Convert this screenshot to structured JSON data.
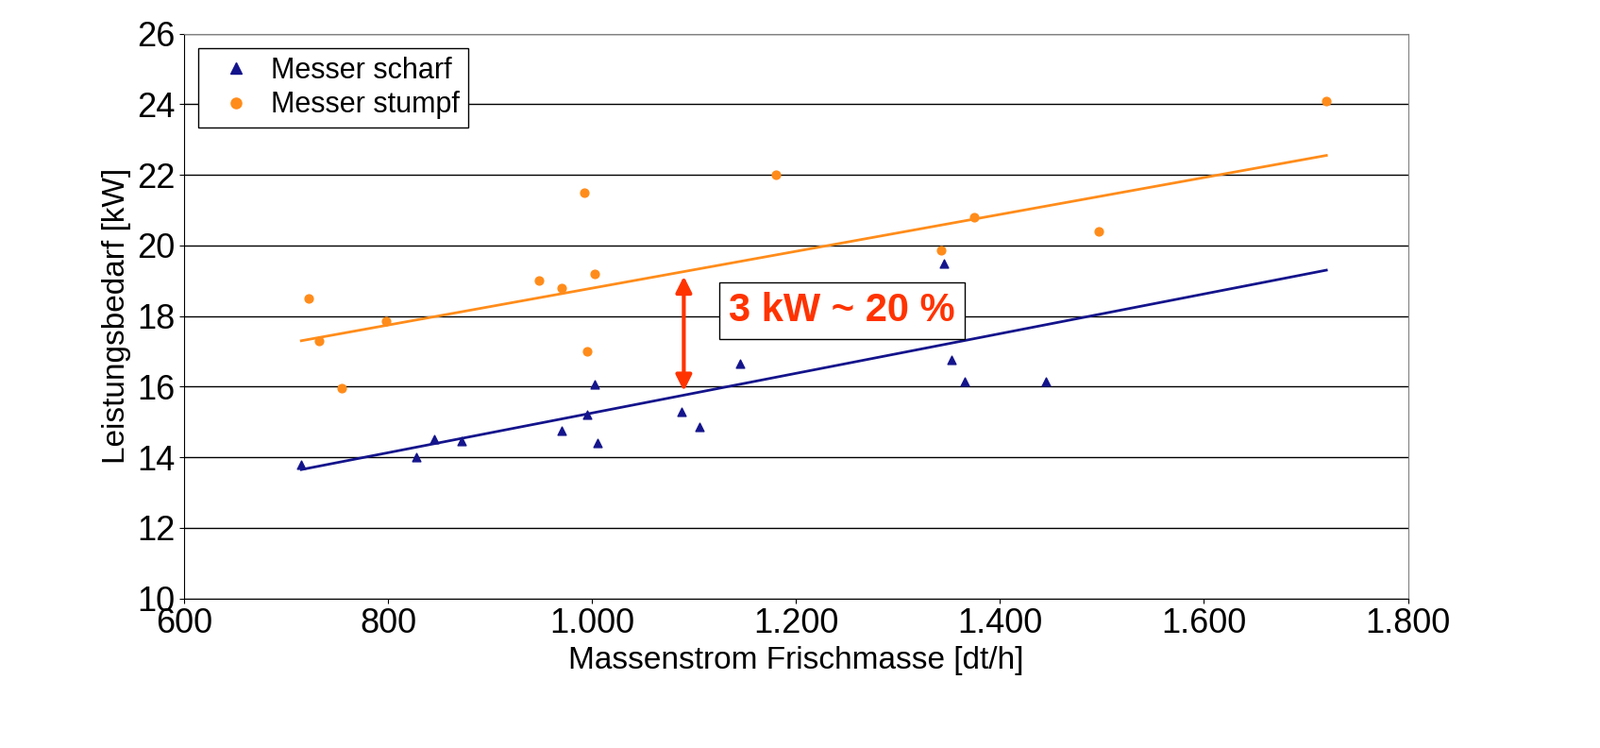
{
  "chart_data": {
    "type": "scatter",
    "x_label": "Massenstrom Frischmasse [dt/h]",
    "y_label": "Leistungsbedarf [kW]",
    "xlim": [
      600,
      1800
    ],
    "xticks": [
      600,
      800,
      {
        "value": 1000,
        "label": "1.000"
      },
      {
        "value": 1200,
        "label": "1.200"
      },
      {
        "value": 1400,
        "label": "1.400"
      },
      {
        "value": 1600,
        "label": "1.600"
      },
      {
        "value": 1800,
        "label": "1.800"
      }
    ],
    "ylim": [
      10,
      26
    ],
    "yticks": [
      10,
      12,
      14,
      16,
      18,
      20,
      22,
      24,
      26
    ],
    "grid": true,
    "legend": "upper left",
    "series": [
      {
        "name": "Messer scharf",
        "color": "#14148c",
        "marker": "triangle",
        "x": [
          715,
          828,
          845,
          872,
          970,
          995,
          1003,
          1005,
          1088,
          1105,
          1145,
          1345,
          1352,
          1365,
          1445
        ],
        "values": [
          13.8,
          14.0,
          14.5,
          14.45,
          14.75,
          15.2,
          16.05,
          14.4,
          15.3,
          14.85,
          16.65,
          19.5,
          16.75,
          16.15,
          16.15
        ],
        "trend_x": [
          715,
          1720
        ],
        "trend_values": [
          13.65,
          19.3
        ]
      },
      {
        "name": "Messer stumpf",
        "color": "#ff8c1a",
        "marker": "circle",
        "x": [
          722,
          732,
          755,
          798,
          948,
          970,
          992,
          995,
          1003,
          1180,
          1342,
          1375,
          1497,
          1720
        ],
        "values": [
          18.5,
          17.3,
          15.95,
          17.85,
          19.0,
          18.8,
          21.5,
          17.0,
          19.2,
          22.0,
          19.85,
          20.8,
          20.4,
          24.1
        ],
        "trend_x": [
          715,
          1720
        ],
        "trend_values": [
          17.3,
          22.55
        ]
      }
    ],
    "annotations": [
      {
        "text": "3 kW ~ 20 %",
        "color": "#ff3300",
        "x": 1245,
        "y": 18.15,
        "arrow_x": 1090,
        "arrow_y": [
          15.8,
          19.2
        ]
      }
    ]
  }
}
